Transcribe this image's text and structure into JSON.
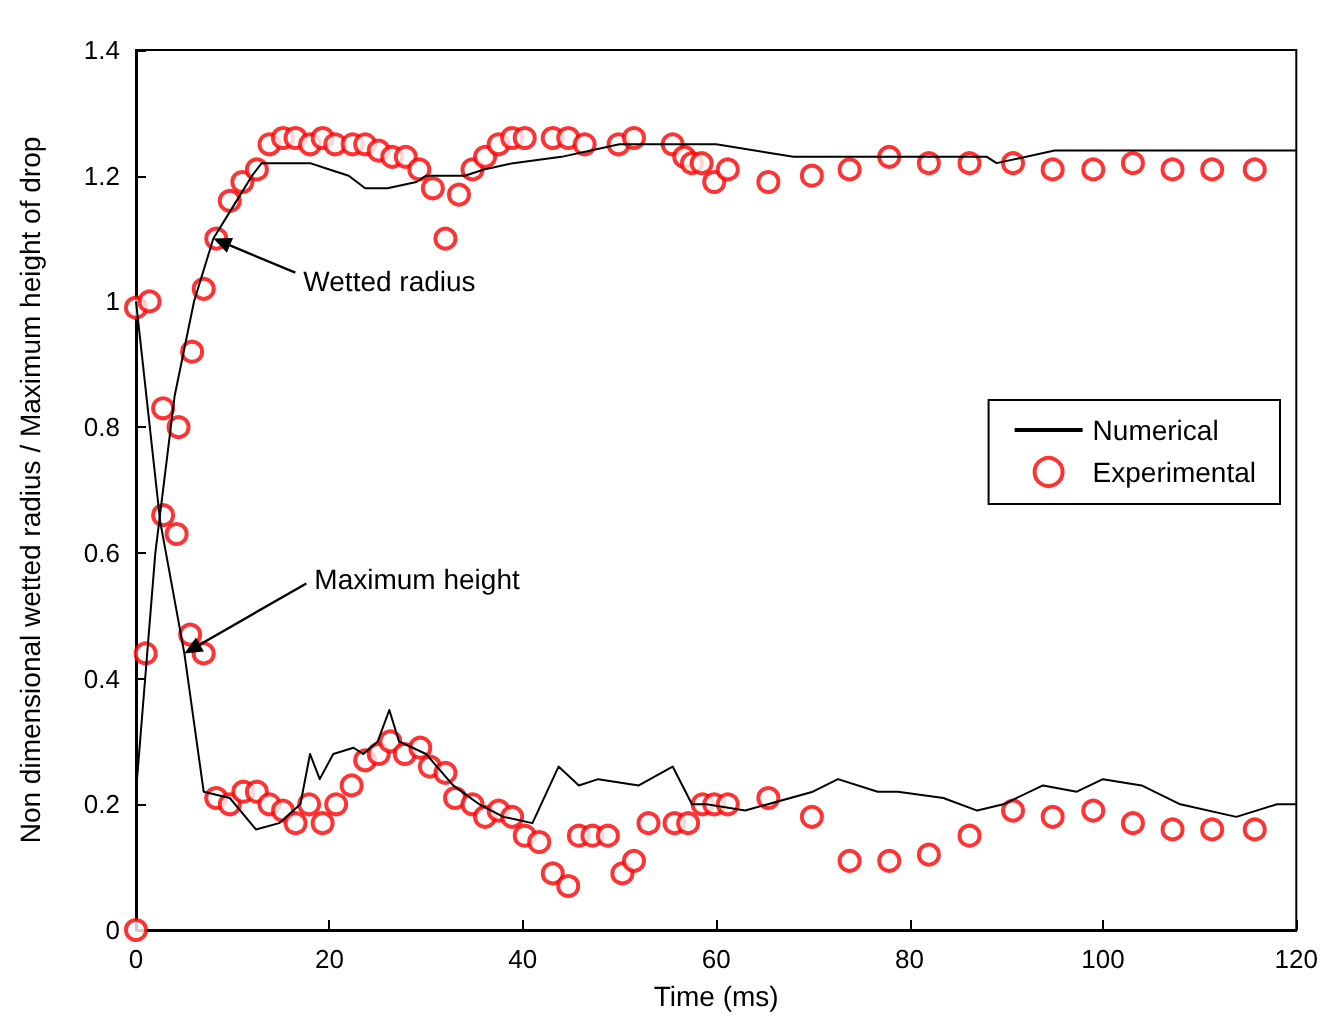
{
  "chart_data": {
    "type": "line",
    "xlabel": "Time (ms)",
    "ylabel": "Non dimensional wetted radius / Maximum height of drop",
    "xlim": [
      0,
      120
    ],
    "xticks": [
      0,
      20,
      40,
      60,
      80,
      100,
      120
    ],
    "ylim": [
      0,
      1.4
    ],
    "yticks": [
      0,
      0.2,
      0.4,
      0.6,
      0.8,
      1,
      1.2,
      1.4
    ],
    "grid": false,
    "legend": "right",
    "annotations": [
      {
        "text": "Wetted radius",
        "x": 8,
        "y": 1.1
      },
      {
        "text": "Maximum height",
        "x": 5,
        "y": 0.44
      }
    ],
    "series": [
      {
        "name": "Numerical",
        "color": "#000000",
        "marker": "none",
        "line_style": "solid",
        "x": [
          0,
          2,
          4,
          6,
          8,
          10,
          12,
          13,
          18,
          20,
          22,
          23.7,
          26,
          29,
          30,
          34,
          36,
          39,
          44,
          50,
          56,
          60,
          68,
          75,
          80,
          88,
          89,
          95,
          103.5,
          110,
          120
        ],
        "values": [
          0.22,
          0.6,
          0.85,
          1.0,
          1.1,
          1.15,
          1.2,
          1.22,
          1.22,
          1.21,
          1.2,
          1.18,
          1.18,
          1.19,
          1.2,
          1.2,
          1.21,
          1.22,
          1.23,
          1.25,
          1.25,
          1.25,
          1.23,
          1.23,
          1.23,
          1.23,
          1.22,
          1.24,
          1.24,
          1.24,
          1.24
        ]
      },
      {
        "color": "#000000",
        "marker": "none",
        "line_style": "solid",
        "x": [
          0,
          2.5,
          5,
          7,
          9.7,
          12.4,
          14.8,
          17,
          18,
          19,
          20.4,
          22.5,
          23.5,
          25,
          26.2,
          27.2,
          30,
          32.8,
          35.5,
          38,
          41,
          43.7,
          45.8,
          47.8,
          52,
          55.5,
          57.5,
          59,
          63,
          70,
          72.6,
          76.7,
          78.8,
          83.5,
          87,
          89.7,
          93.8,
          97.3,
          100,
          104,
          108,
          113.8,
          118,
          120
        ],
        "values": [
          1.0,
          0.65,
          0.44,
          0.22,
          0.21,
          0.16,
          0.17,
          0.2,
          0.28,
          0.24,
          0.28,
          0.29,
          0.28,
          0.3,
          0.35,
          0.3,
          0.28,
          0.23,
          0.2,
          0.18,
          0.17,
          0.26,
          0.23,
          0.24,
          0.23,
          0.26,
          0.2,
          0.2,
          0.19,
          0.22,
          0.24,
          0.22,
          0.22,
          0.21,
          0.19,
          0.2,
          0.23,
          0.22,
          0.24,
          0.23,
          0.2,
          0.18,
          0.2,
          0.2
        ]
      },
      {
        "name": "Experimental",
        "type": "scatter",
        "color": "#ff0000",
        "marker": "circle",
        "x": [
          0,
          1.4,
          2.8,
          4.4,
          5.8,
          7,
          8.3,
          9.7,
          11,
          12.5,
          13.8,
          15.2,
          16.5,
          18,
          19.3,
          20.6,
          22.4,
          23.7,
          25.1,
          26.5,
          27.9,
          29.3,
          30.7,
          32,
          33.4,
          34.8,
          36.1,
          37.5,
          38.9,
          40.2,
          43.1,
          44.7,
          46.4,
          49.9,
          51.5,
          55.5,
          56.7,
          57.5,
          58.5,
          59.8,
          61.2,
          65.4,
          69.9,
          73.8,
          77.9,
          82,
          86.2,
          90.7,
          94.8,
          99,
          103.1,
          107.2,
          111.3,
          115.7,
          0,
          1,
          2.8,
          4.2,
          5.6,
          7,
          8.3,
          9.7,
          11.1,
          12.5,
          13.8,
          15.2,
          16.5,
          17.9,
          19.3,
          20.7,
          22.3,
          23.7,
          25.1,
          26.3,
          27.8,
          29.4,
          30.4,
          32,
          33,
          34.8,
          36.1,
          37.5,
          38.9,
          40.2,
          41.7,
          43.1,
          44.7,
          45.8,
          47.2,
          48.8,
          50.3,
          51.5,
          53,
          55.7,
          57.1,
          58.6,
          59.8,
          61.2,
          65.4,
          69.9,
          73.8,
          77.9,
          82,
          86.2,
          90.7,
          94.8,
          99,
          103.1,
          107.2,
          111.3,
          115.7
        ],
        "values": [
          0.99,
          1.0,
          0.83,
          0.8,
          0.92,
          1.02,
          1.1,
          1.16,
          1.19,
          1.21,
          1.25,
          1.26,
          1.26,
          1.25,
          1.26,
          1.25,
          1.25,
          1.25,
          1.24,
          1.23,
          1.23,
          1.21,
          1.18,
          1.1,
          1.17,
          1.21,
          1.23,
          1.25,
          1.26,
          1.26,
          1.26,
          1.26,
          1.25,
          1.25,
          1.26,
          1.25,
          1.23,
          1.22,
          1.22,
          1.19,
          1.21,
          1.19,
          1.2,
          1.21,
          1.23,
          1.22,
          1.22,
          1.22,
          1.21,
          1.21,
          1.22,
          1.21,
          1.21,
          1.21,
          0,
          0.44,
          0.66,
          0.63,
          0.47,
          0.44,
          0.21,
          0.2,
          0.22,
          0.22,
          0.2,
          0.19,
          0.17,
          0.2,
          0.17,
          0.2,
          0.23,
          0.27,
          0.28,
          0.3,
          0.28,
          0.29,
          0.26,
          0.25,
          0.21,
          0.2,
          0.18,
          0.19,
          0.18,
          0.15,
          0.14,
          0.09,
          0.07,
          0.15,
          0.15,
          0.15,
          0.09,
          0.11,
          0.17,
          0.17,
          0.17,
          0.2,
          0.2,
          0.2,
          0.21,
          0.18,
          0.11,
          0.11,
          0.12,
          0.15,
          0.19,
          0.18,
          0.19,
          0.17,
          0.16,
          0.16,
          0.16
        ]
      }
    ]
  }
}
